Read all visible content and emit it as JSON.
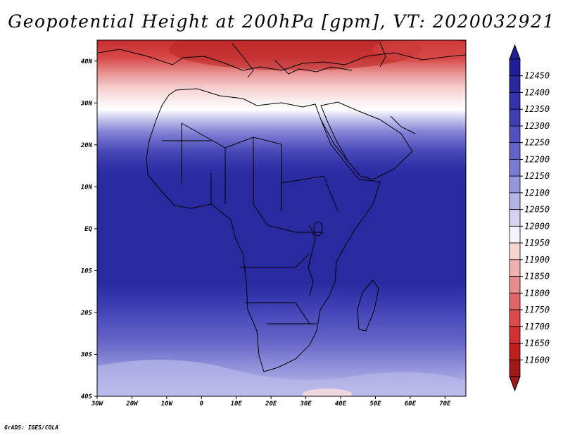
{
  "title": "Geopotential Height at 200hPa [gpm], VT: 2020032921",
  "credit": "GrADS: IGES/COLA",
  "map": {
    "lon_range": [
      -30,
      76
    ],
    "lat_range": [
      -40,
      45
    ],
    "lon_ticks": [
      "30W",
      "20W",
      "10W",
      "0",
      "10E",
      "20E",
      "30E",
      "40E",
      "50E",
      "60E",
      "70E"
    ],
    "lat_ticks": [
      "40N",
      "30N",
      "20N",
      "10N",
      "EQ",
      "10S",
      "20S",
      "30S",
      "40S"
    ]
  },
  "colorbar": {
    "levels": [
      "12450",
      "12400",
      "12350",
      "12300",
      "12250",
      "12200",
      "12150",
      "12100",
      "12050",
      "12000",
      "11950",
      "11900",
      "11850",
      "11800",
      "11750",
      "11700",
      "11650",
      "11600"
    ],
    "colors": [
      "#1e1e96",
      "#28289f",
      "#3232aa",
      "#3e3eb5",
      "#5050c0",
      "#6464c8",
      "#7a7ad2",
      "#9696dc",
      "#b4b4e6",
      "#d4d4f0",
      "#f3f3fc",
      "#f7d4d4",
      "#f0b0b0",
      "#e68c8c",
      "#e06666",
      "#dc4a4a",
      "#d23232",
      "#be2020",
      "#a01818"
    ],
    "field_colors": {
      "deep_blue": "#2a2aa0",
      "red_top": "#c93232"
    }
  }
}
